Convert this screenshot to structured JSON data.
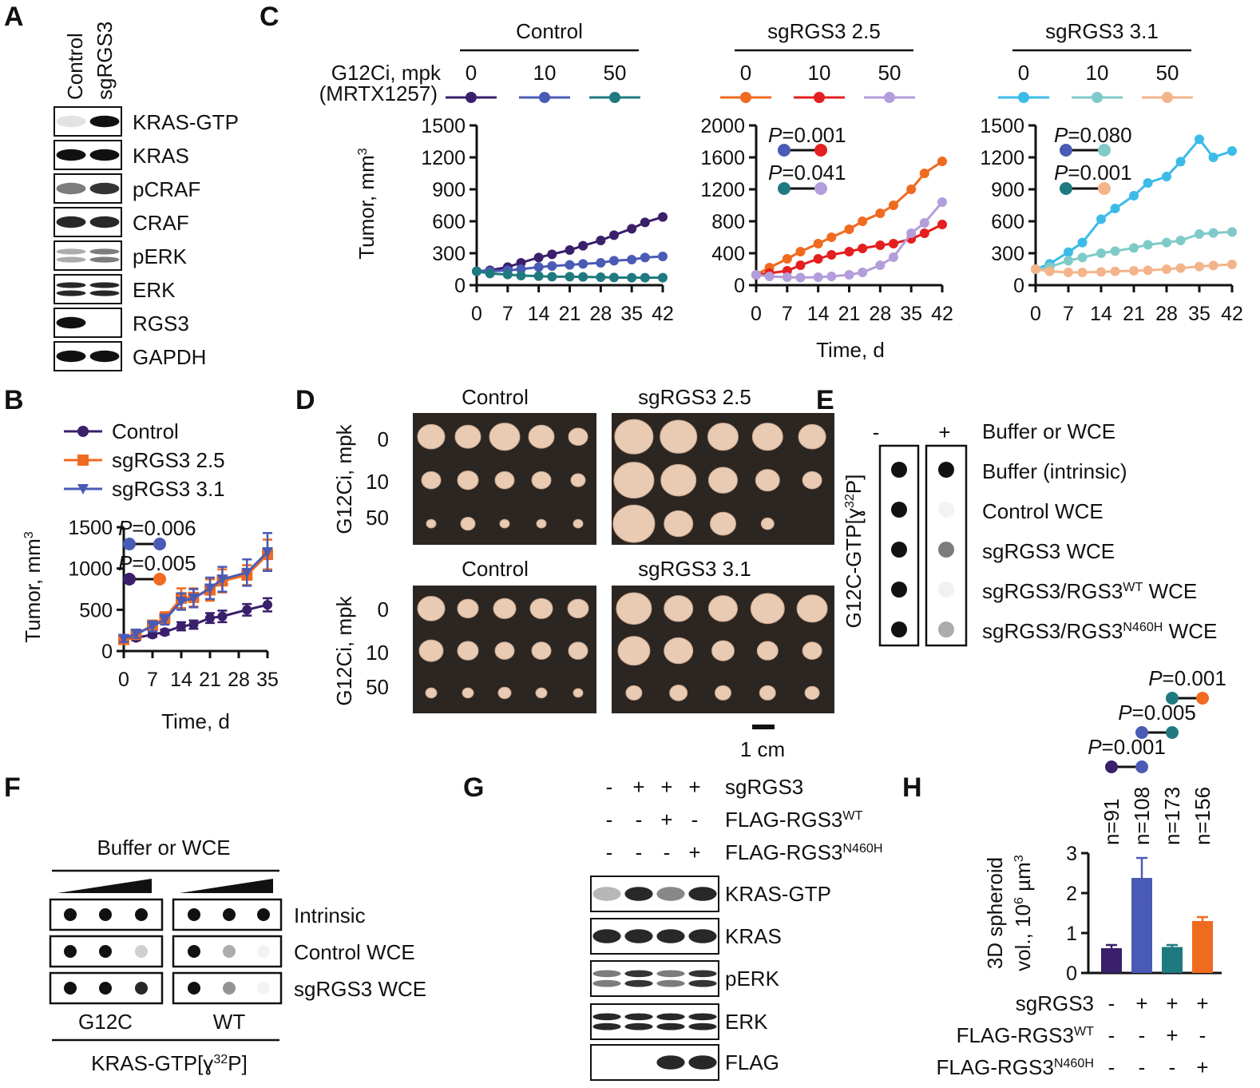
{
  "panel_labels": {
    "a": "A",
    "b": "B",
    "c": "C",
    "d": "D",
    "e": "E",
    "f": "F",
    "g": "G",
    "h": "H"
  },
  "panel_a": {
    "lanes": [
      "Control",
      "sgRGS3"
    ],
    "rows": [
      "KRAS-GTP",
      "KRAS",
      "pCRAF",
      "CRAF",
      "pERK",
      "ERK",
      "RGS3",
      "GAPDH"
    ]
  },
  "panel_c": {
    "legend_title": [
      "G12Ci, mpk",
      "(MRTX1257)"
    ]
  },
  "panel_d": {
    "top": [
      "Control",
      "sgRGS3 2.5"
    ],
    "bottom": [
      "Control",
      "sgRGS3 3.1"
    ],
    "row_title": "G12Ci, mpk",
    "doses": [
      "0",
      "10",
      "50"
    ],
    "scale": "1 cm"
  },
  "panel_e": {
    "columns": [
      "-",
      "+"
    ],
    "header": "Buffer or WCE",
    "rows": [
      "Buffer (intrinsic)",
      "Control WCE",
      "sgRGS3 WCE",
      [
        {
          "text": "sgRGS3/RGS3"
        },
        {
          "sup": "WT"
        },
        {
          "text": " WCE"
        }
      ],
      [
        {
          "text": "sgRGS3/RGS3"
        },
        {
          "sup": "N460H"
        },
        {
          "text": " WCE"
        }
      ]
    ],
    "ylabel": [
      {
        "text": "G12C-GTP[ɣ"
      },
      {
        "sup": "32"
      },
      {
        "text": "P]"
      }
    ]
  },
  "panel_f": {
    "title": "Buffer or WCE",
    "rows": [
      "Intrinsic",
      "Control WCE",
      "sgRGS3 WCE"
    ],
    "groups": [
      "G12C",
      "WT"
    ],
    "xlabel": [
      {
        "text": "KRAS-GTP[ɣ"
      },
      {
        "sup": "32"
      },
      {
        "text": "P]"
      }
    ]
  },
  "panel_g": {
    "conditions": [
      {
        "label": "sgRGS3",
        "signs": [
          "-",
          "+",
          "+",
          "+"
        ]
      },
      {
        "label": [
          {
            "text": "FLAG-RGS3"
          },
          {
            "sup": "WT"
          }
        ],
        "signs": [
          "-",
          "-",
          "+",
          "-"
        ]
      },
      {
        "label": [
          {
            "text": "FLAG-RGS3"
          },
          {
            "sup": "N460H"
          }
        ],
        "signs": [
          "-",
          "-",
          "-",
          "+"
        ]
      }
    ],
    "rows": [
      "KRAS-GTP",
      "KRAS",
      "pERK",
      "ERK",
      "FLAG"
    ]
  },
  "chart_data": [
    {
      "type": "line",
      "xlabel": "Time, d",
      "ylabel": [
        {
          "text": "Tumor, mm"
        },
        {
          "sup": "3"
        }
      ],
      "x": [
        0,
        3,
        7,
        10,
        14,
        17,
        21,
        24,
        30,
        35
      ],
      "xlim": [
        0,
        35
      ],
      "xticks": [
        0,
        7,
        14,
        21,
        28,
        35
      ],
      "ylim": [
        0,
        1500
      ],
      "yticks": [
        0,
        500,
        1000,
        1500
      ],
      "series": [
        {
          "name": "Control",
          "color": "#3a1f6b",
          "marker": "circle",
          "values": [
            150,
            160,
            200,
            230,
            300,
            320,
            400,
            420,
            500,
            560
          ],
          "errors": [
            40,
            30,
            30,
            30,
            50,
            50,
            60,
            70,
            70,
            80
          ]
        },
        {
          "name": "sgRGS3 2.5",
          "color": "#f06a1f",
          "marker": "square",
          "values": [
            140,
            200,
            310,
            400,
            640,
            650,
            740,
            850,
            920,
            1170
          ],
          "errors": [
            50,
            40,
            60,
            70,
            120,
            110,
            130,
            140,
            120,
            180
          ]
        },
        {
          "name": "sgRGS3 3.1",
          "color": "#4a5bb5",
          "marker": "triangle",
          "values": [
            150,
            210,
            300,
            380,
            600,
            640,
            760,
            870,
            950,
            1200
          ],
          "errors": [
            40,
            50,
            60,
            60,
            100,
            110,
            130,
            150,
            160,
            230
          ]
        }
      ],
      "annotations": [
        {
          "text": [
            {
              "i": "P"
            },
            {
              "text": "=0.006"
            }
          ],
          "colors": [
            "#4a5bb5",
            "#4a5bb5"
          ]
        },
        {
          "text": [
            {
              "i": "P"
            },
            {
              "text": "=0.005"
            }
          ],
          "colors": [
            "#3a1f6b",
            "#f06a1f"
          ]
        }
      ]
    },
    {
      "type": "line",
      "title": "Control",
      "ylabel": [
        {
          "text": "Tumor, mm"
        },
        {
          "sup": "3"
        }
      ],
      "x": [
        0,
        3,
        7,
        10,
        14,
        17,
        21,
        24,
        28,
        31,
        35,
        38,
        42
      ],
      "xlim": [
        0,
        42
      ],
      "xticks": [
        0,
        7,
        14,
        21,
        28,
        35,
        42
      ],
      "ylim": [
        0,
        1500
      ],
      "yticks": [
        0,
        300,
        600,
        900,
        1200,
        1500
      ],
      "series": [
        {
          "name": "0",
          "color": "#3a1f6b",
          "values": [
            130,
            140,
            170,
            210,
            260,
            290,
            330,
            370,
            420,
            470,
            530,
            590,
            640
          ]
        },
        {
          "name": "10",
          "color": "#4a5bb5",
          "values": [
            130,
            130,
            140,
            150,
            170,
            180,
            190,
            200,
            210,
            230,
            240,
            260,
            270
          ]
        },
        {
          "name": "50",
          "color": "#1f7a80",
          "values": [
            130,
            110,
            100,
            90,
            85,
            80,
            80,
            78,
            75,
            72,
            70,
            70,
            70
          ]
        }
      ]
    },
    {
      "type": "line",
      "title": "sgRGS3 2.5",
      "xlabel": "Time, d",
      "x": [
        0,
        3,
        7,
        10,
        14,
        17,
        21,
        24,
        28,
        31,
        35,
        38,
        42
      ],
      "xlim": [
        0,
        42
      ],
      "xticks": [
        0,
        7,
        14,
        21,
        28,
        35,
        42
      ],
      "ylim": [
        0,
        2000
      ],
      "yticks": [
        0,
        400,
        800,
        1200,
        1600,
        2000
      ],
      "series": [
        {
          "name": "0",
          "color": "#f06a1f",
          "values": [
            130,
            220,
            330,
            420,
            520,
            600,
            700,
            800,
            900,
            1000,
            1200,
            1400,
            1550
          ]
        },
        {
          "name": "10",
          "color": "#e41f1f",
          "values": [
            130,
            150,
            180,
            250,
            330,
            380,
            420,
            460,
            500,
            520,
            580,
            650,
            760
          ]
        },
        {
          "name": "50",
          "color": "#b39ddb",
          "values": [
            130,
            110,
            100,
            95,
            100,
            110,
            130,
            160,
            250,
            350,
            650,
            780,
            1040
          ]
        }
      ],
      "annotations": [
        {
          "text": [
            {
              "i": "P"
            },
            {
              "text": "=0.001"
            }
          ],
          "colors": [
            "#4a5bb5",
            "#e41f1f"
          ]
        },
        {
          "text": [
            {
              "i": "P"
            },
            {
              "text": "=0.041"
            }
          ],
          "colors": [
            "#1f7a80",
            "#b39ddb"
          ]
        }
      ]
    },
    {
      "type": "line",
      "title": "sgRGS3 3.1",
      "x": [
        0,
        3,
        7,
        10,
        14,
        17,
        21,
        24,
        28,
        31,
        35,
        38,
        42
      ],
      "xlim": [
        0,
        42
      ],
      "xticks": [
        0,
        7,
        14,
        21,
        28,
        35,
        42
      ],
      "ylim": [
        0,
        1500
      ],
      "yticks": [
        0,
        300,
        600,
        900,
        1200,
        1500
      ],
      "series": [
        {
          "name": "0",
          "color": "#3cbbe8",
          "values": [
            150,
            200,
            310,
            400,
            620,
            720,
            840,
            960,
            1020,
            1160,
            1370,
            1200,
            1260
          ]
        },
        {
          "name": "10",
          "color": "#7fcac9",
          "values": [
            150,
            170,
            230,
            260,
            300,
            320,
            350,
            380,
            400,
            420,
            480,
            490,
            500
          ]
        },
        {
          "name": "50",
          "color": "#f4b48b",
          "values": [
            150,
            130,
            120,
            120,
            125,
            130,
            135,
            140,
            150,
            160,
            175,
            185,
            195
          ]
        }
      ],
      "annotations": [
        {
          "text": [
            {
              "i": "P"
            },
            {
              "text": "=0.080"
            }
          ],
          "colors": [
            "#4a5bb5",
            "#7fcac9"
          ]
        },
        {
          "text": [
            {
              "i": "P"
            },
            {
              "text": "=0.001"
            }
          ],
          "colors": [
            "#1f7a80",
            "#f4b48b"
          ]
        }
      ]
    },
    {
      "type": "bar",
      "categories": [
        null,
        null,
        null,
        null
      ],
      "values": [
        0.62,
        2.38,
        0.65,
        1.3
      ],
      "errors": [
        0.08,
        0.5,
        0.05,
        0.1
      ],
      "colors": [
        "#3a1f6b",
        "#4a5bb5",
        "#1f7a80",
        "#f06a1f"
      ],
      "ylim": [
        0,
        3
      ],
      "yticks": [
        0,
        1,
        2,
        3
      ],
      "ylabel": [
        "3D spheroid",
        [
          {
            "text": "vol., 10"
          },
          {
            "sup": "6"
          },
          {
            "text": " µm"
          },
          {
            "sup": "3"
          }
        ]
      ],
      "counts": [
        "n=91",
        "n=108",
        "n=173",
        "n=156"
      ],
      "annotations": [
        {
          "text": [
            {
              "i": "P"
            },
            {
              "text": "=0.001"
            }
          ],
          "colors": [
            "#3a1f6b",
            "#4a5bb5"
          ]
        },
        {
          "text": [
            {
              "i": "P"
            },
            {
              "text": "=0.005"
            }
          ],
          "colors": [
            "#4a5bb5",
            "#1f7a80"
          ]
        },
        {
          "text": [
            {
              "i": "P"
            },
            {
              "text": "=0.001"
            }
          ],
          "colors": [
            "#1f7a80",
            "#f06a1f"
          ]
        }
      ],
      "conditions": [
        {
          "label": "sgRGS3",
          "signs": [
            "-",
            "+",
            "+",
            "+"
          ]
        },
        {
          "label": [
            {
              "text": "FLAG-RGS3"
            },
            {
              "sup": "WT"
            }
          ],
          "signs": [
            "-",
            "-",
            "+",
            "-"
          ]
        },
        {
          "label": [
            {
              "text": "FLAG-RGS3"
            },
            {
              "sup": "N460H"
            }
          ],
          "signs": [
            "-",
            "-",
            "-",
            "+"
          ]
        }
      ]
    }
  ]
}
